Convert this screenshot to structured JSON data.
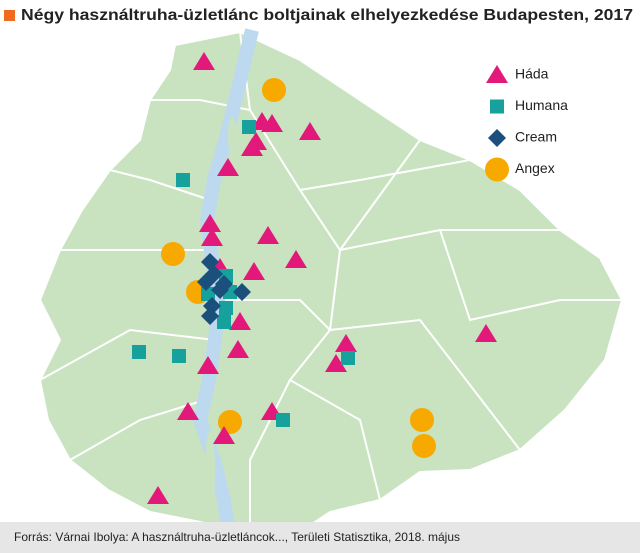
{
  "title": "Négy használtruha-üzletlánc boltjainak elhelyezkedése Budapesten, 2017",
  "legend": [
    {
      "label": "Háda",
      "color": "#e2197a"
    },
    {
      "label": "Humana",
      "color": "#17a19c"
    },
    {
      "label": "Cream",
      "color": "#1b4f7c"
    },
    {
      "label": "Angex",
      "color": "#f7a900"
    }
  ],
  "source": "Forrás: Várnai Ibolya: A használtruha-üzletláncok..., Területi Statisztika, 2018. május"
}
